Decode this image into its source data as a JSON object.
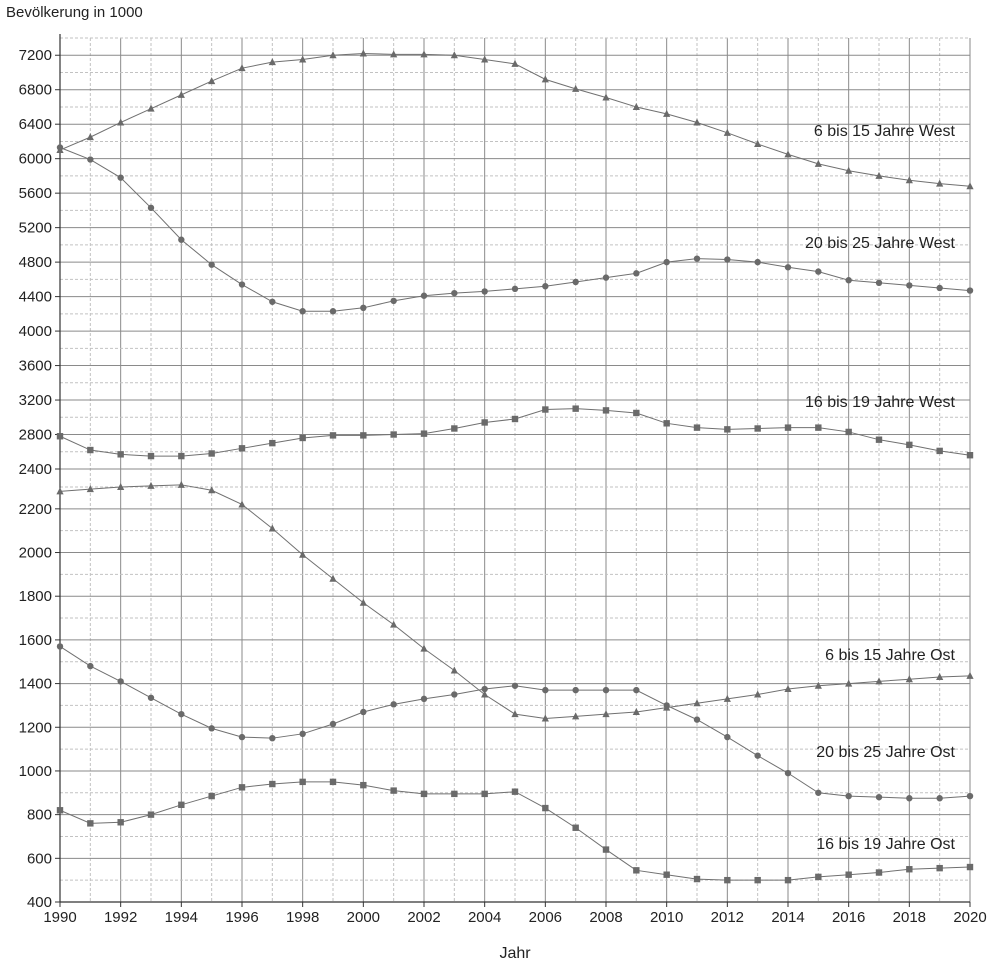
{
  "chart_data": {
    "type": "line",
    "ylabel": "Bevölkerung in 1000",
    "xlabel": "Jahr",
    "x": [
      1990,
      1991,
      1992,
      1993,
      1994,
      1995,
      1996,
      1997,
      1998,
      1999,
      2000,
      2001,
      2002,
      2003,
      2004,
      2005,
      2006,
      2007,
      2008,
      2009,
      2010,
      2011,
      2012,
      2013,
      2014,
      2015,
      2016,
      2017,
      2018,
      2019,
      2020
    ],
    "xlim": [
      1990,
      2020
    ],
    "x_tick_labels": [
      "1990",
      "1992",
      "1994",
      "1996",
      "1998",
      "2000",
      "2002",
      "2004",
      "2006",
      "2008",
      "2010",
      "2012",
      "2014",
      "2016",
      "2018",
      "2020"
    ],
    "y_axis_broken": true,
    "y_tick_labels_upper": [
      "2400",
      "2800",
      "3200",
      "3600",
      "4000",
      "4400",
      "4800",
      "5200",
      "5600",
      "6000",
      "6400",
      "6800",
      "7200"
    ],
    "y_tick_labels_lower": [
      "400",
      "600",
      "800",
      "1000",
      "1200",
      "1400",
      "1600",
      "1800",
      "2000",
      "2200"
    ],
    "grid": true,
    "series": [
      {
        "name": "6 bis 15 Jahre West",
        "marker": "triangle",
        "values": [
          6100,
          6250,
          6420,
          6580,
          6740,
          6900,
          7050,
          7120,
          7150,
          7200,
          7220,
          7210,
          7210,
          7200,
          7150,
          7100,
          6920,
          6810,
          6710,
          6600,
          6520,
          6420,
          6300,
          6170,
          6050,
          5940,
          5860,
          5800,
          5750,
          5710,
          5680
        ]
      },
      {
        "name": "20 bis 25 Jahre West",
        "marker": "circle",
        "values": [
          6130,
          5990,
          5780,
          5430,
          5060,
          4770,
          4540,
          4340,
          4230,
          4230,
          4270,
          4350,
          4410,
          4440,
          4460,
          4490,
          4520,
          4570,
          4620,
          4670,
          4800,
          4840,
          4830,
          4800,
          4740,
          4690,
          4590,
          4560,
          4530,
          4500,
          4470
        ]
      },
      {
        "name": "16 bis 19 Jahre West",
        "marker": "square",
        "values": [
          2780,
          2620,
          2570,
          2550,
          2550,
          2580,
          2640,
          2700,
          2760,
          2790,
          2790,
          2800,
          2810,
          2870,
          2940,
          2980,
          3090,
          3100,
          3080,
          3050,
          2930,
          2880,
          2860,
          2870,
          2880,
          2880,
          2830,
          2740,
          2680,
          2610,
          2560
        ]
      },
      {
        "name": "6 bis 15 Jahre Ost",
        "marker": "triangle",
        "values": [
          2280,
          2290,
          2300,
          2305,
          2310,
          2285,
          2220,
          2110,
          1990,
          1880,
          1770,
          1670,
          1560,
          1460,
          1350,
          1260,
          1240,
          1250,
          1260,
          1270,
          1290,
          1310,
          1330,
          1350,
          1375,
          1390,
          1400,
          1410,
          1420,
          1430,
          1435
        ]
      },
      {
        "name": "20 bis 25 Jahre Ost",
        "marker": "circle",
        "values": [
          1570,
          1480,
          1410,
          1335,
          1260,
          1195,
          1155,
          1150,
          1170,
          1215,
          1270,
          1305,
          1330,
          1350,
          1375,
          1390,
          1370,
          1370,
          1370,
          1370,
          1300,
          1235,
          1155,
          1070,
          990,
          900,
          885,
          880,
          875,
          875,
          885
        ]
      },
      {
        "name": "16 bis 19 Jahre Ost",
        "marker": "square",
        "values": [
          820,
          760,
          765,
          800,
          845,
          885,
          925,
          940,
          950,
          950,
          935,
          910,
          895,
          895,
          895,
          905,
          830,
          740,
          640,
          545,
          525,
          505,
          500,
          500,
          500,
          515,
          525,
          535,
          550,
          555,
          560
        ]
      }
    ]
  }
}
